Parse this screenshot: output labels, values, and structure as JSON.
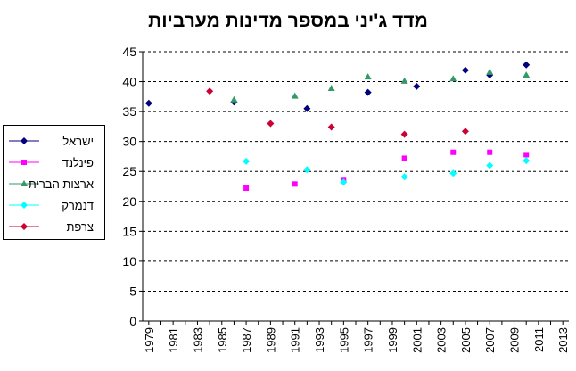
{
  "chart_data": {
    "type": "scatter",
    "title": "מדד ג'יני במספר מדינות מערביות",
    "xlabel": "",
    "ylabel": "",
    "xlim": [
      1978.5,
      2013.5
    ],
    "ylim": [
      0,
      45
    ],
    "x_ticks": [
      "1979",
      "1981",
      "1983",
      "1985",
      "1987",
      "1989",
      "1991",
      "1993",
      "1995",
      "1997",
      "1999",
      "2001",
      "2003",
      "2005",
      "2007",
      "2009",
      "2011",
      "2013"
    ],
    "y_ticks": [
      "0",
      "5",
      "10",
      "15",
      "20",
      "25",
      "30",
      "35",
      "40",
      "45"
    ],
    "grid": "horizontal dashed",
    "legend_position": "left",
    "series": [
      {
        "name": "ישראל",
        "color": "#000080",
        "marker": "diamond",
        "points": [
          [
            1979,
            36.4
          ],
          [
            1986,
            36.6
          ],
          [
            1992,
            35.5
          ],
          [
            1997,
            38.2
          ],
          [
            2001,
            39.2
          ],
          [
            2005,
            41.9
          ],
          [
            2007,
            41.1
          ],
          [
            2010,
            42.8
          ]
        ]
      },
      {
        "name": "פינלנד",
        "color": "#ff00ff",
        "marker": "square",
        "points": [
          [
            1987,
            22.2
          ],
          [
            1991,
            22.9
          ],
          [
            1995,
            23.5
          ],
          [
            2000,
            27.2
          ],
          [
            2004,
            28.2
          ],
          [
            2007,
            28.2
          ],
          [
            2010,
            27.8
          ]
        ]
      },
      {
        "name": "ארצות הברית",
        "color": "#339966",
        "marker": "triangle",
        "points": [
          [
            1986,
            37.0
          ],
          [
            1991,
            37.6
          ],
          [
            1994,
            38.9
          ],
          [
            1997,
            40.8
          ],
          [
            2000,
            40.1
          ],
          [
            2004,
            40.5
          ],
          [
            2007,
            41.6
          ],
          [
            2010,
            41.1
          ]
        ]
      },
      {
        "name": "דנמרק",
        "color": "#00ffff",
        "marker": "diamond",
        "points": [
          [
            1987,
            26.7
          ],
          [
            1992,
            25.3
          ],
          [
            1995,
            23.2
          ],
          [
            2000,
            24.1
          ],
          [
            2004,
            24.7
          ],
          [
            2007,
            26.0
          ],
          [
            2010,
            26.8
          ]
        ]
      },
      {
        "name": "צרפת",
        "color": "#cc0033",
        "marker": "diamond",
        "points": [
          [
            1984,
            38.4
          ],
          [
            1989,
            33.0
          ],
          [
            1994,
            32.4
          ],
          [
            2000,
            31.2
          ],
          [
            2005,
            31.7
          ]
        ]
      }
    ]
  }
}
